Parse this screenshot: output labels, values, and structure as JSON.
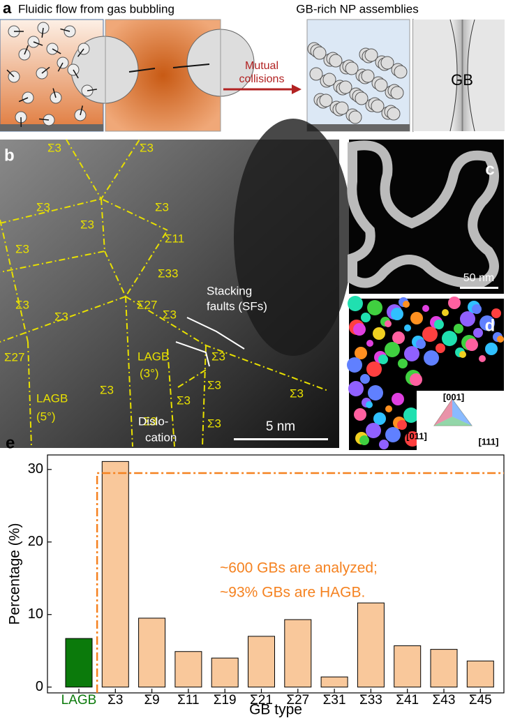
{
  "panel_a": {
    "label": "a",
    "title_left": "Fluidic flow from gas bubbling",
    "title_right": "GB-rich NP assemblies",
    "arrow_label": [
      "Mutual",
      "collisions"
    ],
    "gb_label": "GB"
  },
  "panel_b": {
    "label": "b",
    "sigma_labels": [
      "Σ3",
      "Σ3",
      "Σ3",
      "Σ3",
      "Σ3",
      "Σ11",
      "Σ3",
      "Σ33",
      "Σ3",
      "Σ27",
      "Σ3",
      "Σ3",
      "Σ27",
      "Σ3",
      "Σ3",
      "Σ3",
      "Σ3",
      "Σ3",
      "Σ3",
      "Σ3"
    ],
    "stacking_faults": [
      "Stacking",
      "faults (SFs)"
    ],
    "lagb_right": [
      "LAGB",
      "(3°)"
    ],
    "lagb_left": [
      "LAGB",
      "(5°)"
    ],
    "dislocation": [
      "Dislo-",
      "cation"
    ],
    "scale_bar": "5 nm"
  },
  "panel_c": {
    "label": "c",
    "scale_bar": "50 nm"
  },
  "panel_d": {
    "label": "d",
    "orientations": [
      "[001]",
      "[011]",
      "[111]"
    ]
  },
  "chart_data": {
    "label": "e",
    "type": "bar",
    "x_label": "GB type",
    "y_label": "Percentage (%)",
    "categories": [
      "LAGB",
      "Σ3",
      "Σ9",
      "Σ11",
      "Σ19",
      "Σ21",
      "Σ27",
      "Σ31",
      "Σ33",
      "Σ41",
      "Σ43",
      "Σ45"
    ],
    "values": [
      6.7,
      31.1,
      9.5,
      4.9,
      4.0,
      7.0,
      9.3,
      1.4,
      11.6,
      5.7,
      5.2,
      3.6
    ],
    "colors": [
      "#0b7a0b",
      "#f9c89b",
      "#f9c89b",
      "#f9c89b",
      "#f9c89b",
      "#f9c89b",
      "#f9c89b",
      "#f9c89b",
      "#f9c89b",
      "#f9c89b",
      "#f9c89b",
      "#f9c89b"
    ],
    "ylim": [
      -0.8,
      32
    ],
    "yticks": [
      0,
      10,
      20,
      30
    ],
    "annotation": [
      "~600 GBs are analyzed;",
      "~93% GBs are HAGB."
    ],
    "annotation_color": "#f58220"
  }
}
